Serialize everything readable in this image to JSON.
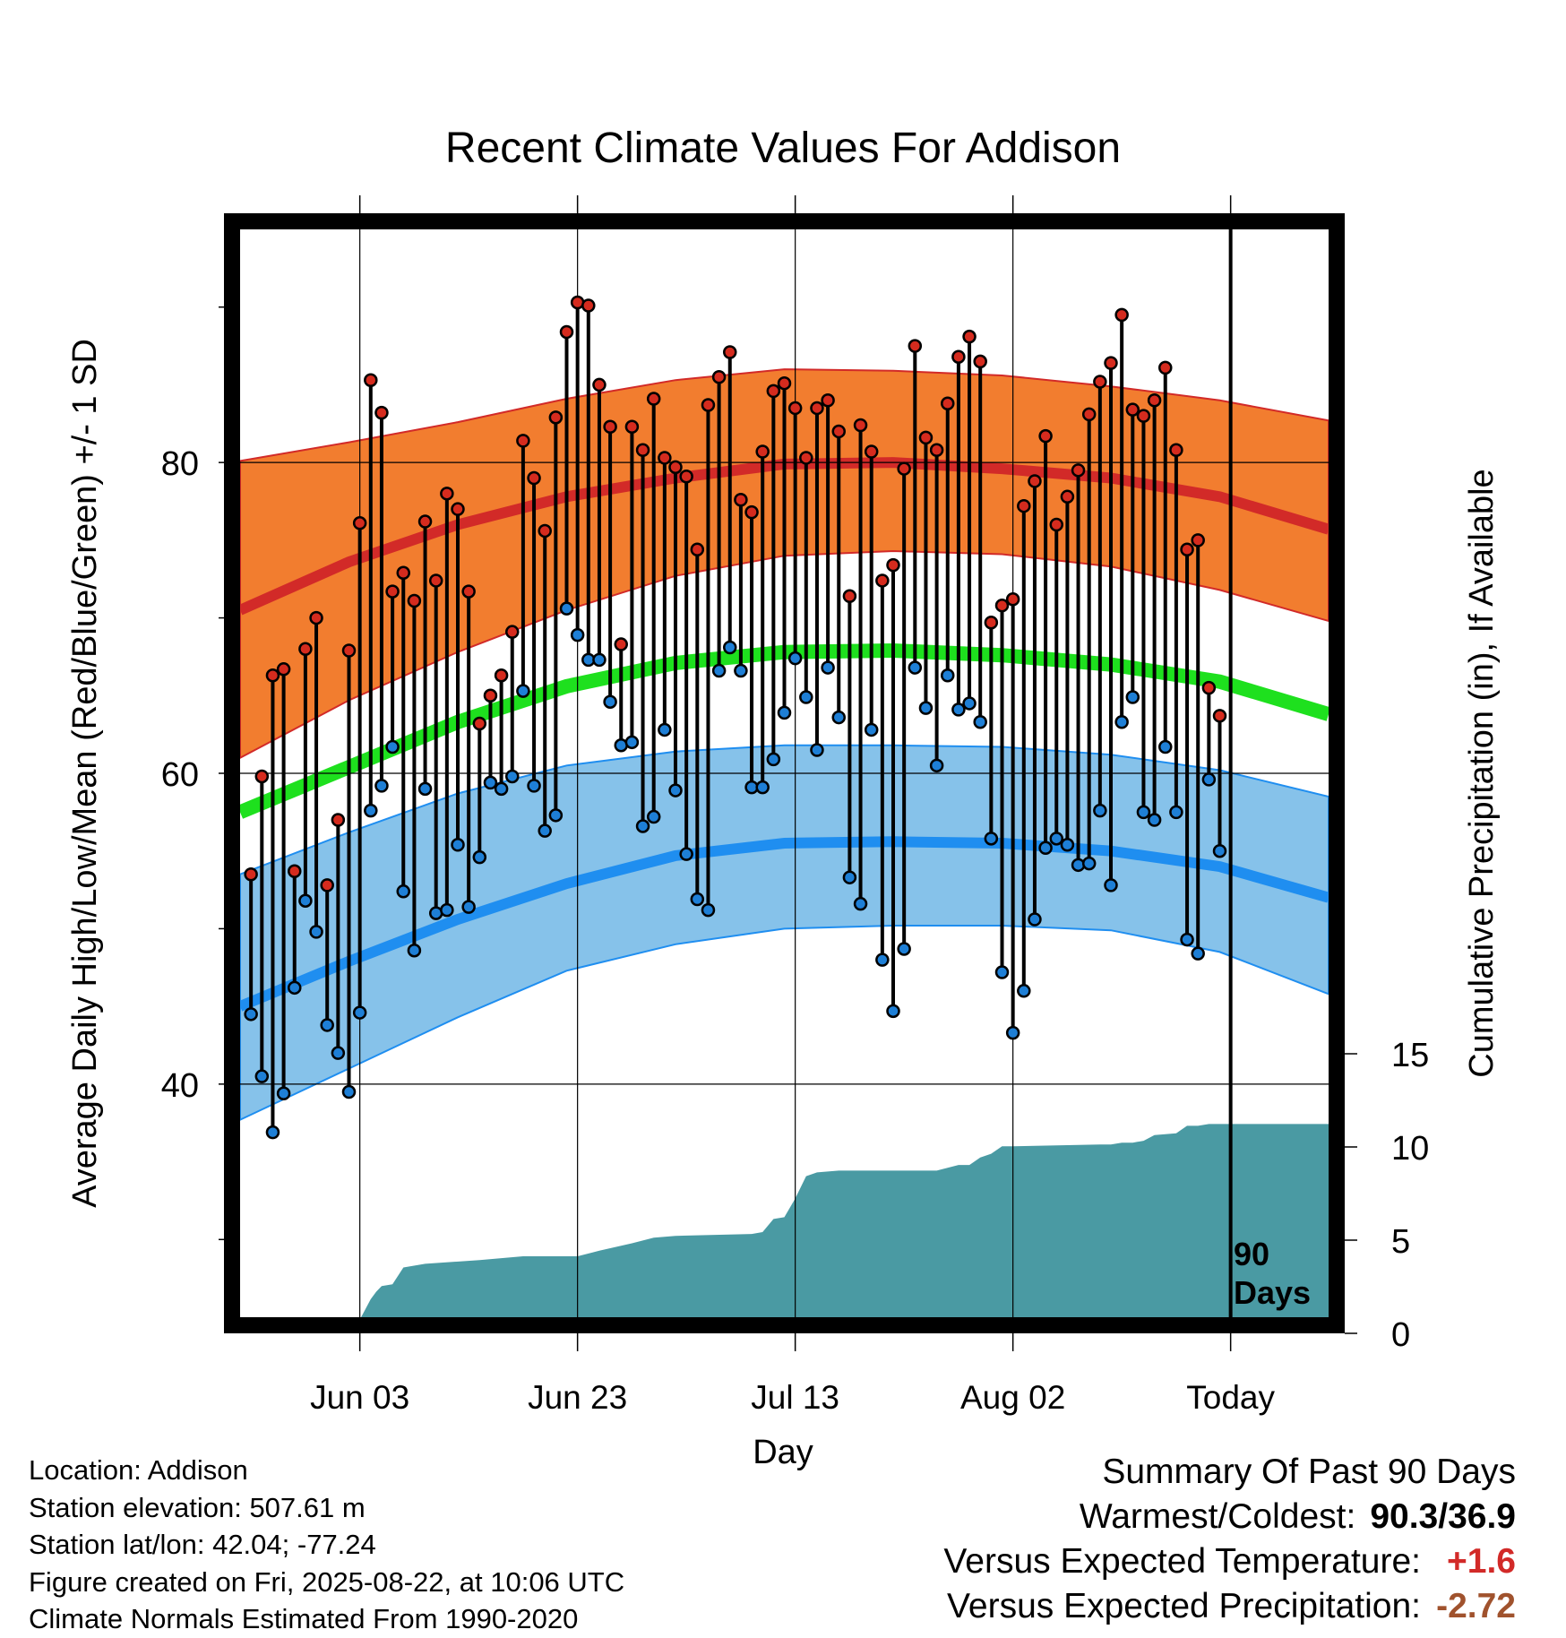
{
  "colors": {
    "high_band": "#f27d2f",
    "high_line": "#d22a28",
    "low_band": "#86c2ea",
    "low_line": "#1f8ef0",
    "mean_line": "#1ee01e",
    "precip": "#4a9aa3",
    "high_dot": "#d52b1e",
    "low_dot": "#1e7fd6",
    "warm_value": "#d22a28",
    "precip_value": "#a0522d"
  },
  "chart_data": {
    "type": "line",
    "title": "Recent Climate Values For Addison",
    "xlabel": "Day",
    "ylabel": "Average Daily High/Low/Mean (Red/Blue/Green) +/- 1 SD",
    "y2label": "Cumulative Precipitation (in), If Available",
    "x_tick_labels": [
      "Jun 03",
      "Jun 23",
      "Jul 13",
      "Aug 02",
      "Today"
    ],
    "x_tick_days": [
      11,
      31,
      51,
      71,
      91
    ],
    "x_range_days": [
      0,
      100
    ],
    "ylim": [
      25,
      95
    ],
    "y_ticks": [
      40,
      60,
      80
    ],
    "y2lim": [
      0,
      40
    ],
    "y2_ticks": [
      0,
      5,
      10,
      15
    ],
    "marker_label": "90 Days",
    "marker_day": 91,
    "grid": true,
    "normals_curve_days": [
      0,
      10,
      20,
      30,
      40,
      50,
      60,
      70,
      80,
      90,
      100
    ],
    "normal_high": [
      70.5,
      73.6,
      76.0,
      77.8,
      79.0,
      79.9,
      80.0,
      79.6,
      79.0,
      77.8,
      75.7
    ],
    "normal_high_upper": [
      80.1,
      81.3,
      82.6,
      84.1,
      85.3,
      86.0,
      85.9,
      85.6,
      84.9,
      84.0,
      82.7
    ],
    "normal_high_lower": [
      61.0,
      64.7,
      67.8,
      70.5,
      72.7,
      74.0,
      74.3,
      74.1,
      73.3,
      71.8,
      69.8
    ],
    "normal_mean": [
      57.5,
      60.4,
      63.3,
      65.6,
      67.1,
      67.8,
      67.9,
      67.6,
      67.0,
      65.9,
      63.8
    ],
    "normal_low": [
      45.0,
      47.9,
      50.6,
      52.9,
      54.7,
      55.5,
      55.6,
      55.5,
      55.0,
      54.0,
      52.0
    ],
    "normal_low_upper": [
      53.5,
      56.2,
      58.7,
      60.5,
      61.4,
      61.8,
      61.8,
      61.7,
      61.2,
      60.2,
      58.5
    ],
    "normal_low_lower": [
      37.7,
      41.0,
      44.3,
      47.3,
      49.0,
      50.0,
      50.2,
      50.2,
      49.9,
      48.5,
      45.8
    ],
    "daily_highs": [
      53.5,
      59.8,
      66.3,
      66.7,
      53.7,
      68.0,
      70.0,
      52.8,
      57.0,
      67.9,
      76.1,
      85.3,
      83.2,
      71.7,
      72.9,
      71.1,
      76.2,
      72.4,
      78.0,
      77.0,
      71.7,
      63.2,
      65.0,
      66.3,
      69.1,
      81.4,
      79.0,
      75.6,
      82.9,
      88.4,
      90.3,
      90.1,
      85.0,
      82.3,
      68.3,
      82.3,
      80.8,
      84.1,
      80.3,
      79.7,
      79.1,
      74.4,
      83.7,
      85.5,
      87.1,
      77.6,
      76.8,
      80.7,
      84.6,
      85.1,
      83.5,
      80.3,
      83.5,
      84.0,
      82.0,
      71.4,
      82.4,
      80.7,
      72.4,
      73.4,
      79.6,
      87.5,
      81.6,
      80.8,
      83.8,
      86.8,
      88.1,
      86.5,
      69.7,
      70.8,
      71.2,
      77.2,
      78.8,
      81.7,
      76.0,
      77.8,
      79.5,
      83.1,
      85.2,
      86.4,
      89.5,
      83.4,
      83.0,
      84.0,
      86.1,
      80.8,
      74.4,
      75.0,
      65.5,
      63.7
    ],
    "daily_lows": [
      44.5,
      40.5,
      36.9,
      39.4,
      46.2,
      51.8,
      49.8,
      43.8,
      42.0,
      39.5,
      44.6,
      57.6,
      59.2,
      61.7,
      52.4,
      48.6,
      59.0,
      51.0,
      51.2,
      55.4,
      51.4,
      54.6,
      59.4,
      59.0,
      59.8,
      65.3,
      59.2,
      56.3,
      57.3,
      70.6,
      68.9,
      67.3,
      67.3,
      64.6,
      61.8,
      62.0,
      56.6,
      57.2,
      62.8,
      58.9,
      54.8,
      51.9,
      51.2,
      66.6,
      68.1,
      66.6,
      59.1,
      59.1,
      60.9,
      63.9,
      67.4,
      64.9,
      61.5,
      66.8,
      63.6,
      53.3,
      51.6,
      62.8,
      48.0,
      44.7,
      48.7,
      66.8,
      64.2,
      60.5,
      66.3,
      64.1,
      64.5,
      63.3,
      55.8,
      47.2,
      43.3,
      46.0,
      50.6,
      55.2,
      55.8,
      55.4,
      54.1,
      54.2,
      57.6,
      52.8,
      63.3,
      64.9,
      57.5,
      57.0,
      61.7,
      57.5,
      49.3,
      48.4,
      59.6,
      55.0
    ],
    "cumulative_precip_days": [
      0,
      4,
      7,
      10,
      11,
      12,
      12.5,
      13,
      14,
      15,
      17,
      22,
      26,
      31,
      33,
      36,
      38,
      40,
      47,
      48,
      49,
      50,
      51,
      52,
      53,
      55,
      64,
      66,
      67,
      68,
      69,
      70,
      71,
      79,
      80,
      81,
      82,
      83,
      84,
      86,
      87,
      88,
      89,
      100
    ],
    "cumulative_precip": [
      0,
      0,
      0.2,
      0.3,
      0.3,
      1.4,
      1.8,
      2.1,
      2.2,
      3.1,
      3.3,
      3.5,
      3.7,
      3.7,
      4.0,
      4.4,
      4.7,
      4.8,
      4.9,
      5.0,
      5.7,
      5.8,
      6.8,
      8.0,
      8.2,
      8.3,
      8.3,
      8.6,
      8.6,
      9.0,
      9.2,
      9.6,
      9.6,
      9.7,
      9.7,
      9.8,
      9.8,
      9.9,
      10.2,
      10.3,
      10.7,
      10.7,
      10.8,
      10.8
    ]
  },
  "info": {
    "location": "Location: Addison",
    "elevation": "Station elevation: 507.61 m",
    "latlon": "Station lat/lon: 42.04; -77.24",
    "created": "Figure created on Fri, 2025-08-22, at 10:06 UTC",
    "normals": "Climate Normals Estimated From 1990-2020"
  },
  "summary": {
    "heading": "Summary Of Past 90 Days",
    "warm_cold_label": "Warmest/Coldest:",
    "warm_cold_value": "90.3/36.9",
    "temp_label": "Versus Expected Temperature:",
    "temp_value": "+1.6",
    "precip_label": "Versus Expected Precipitation:",
    "precip_value": "-2.72"
  }
}
